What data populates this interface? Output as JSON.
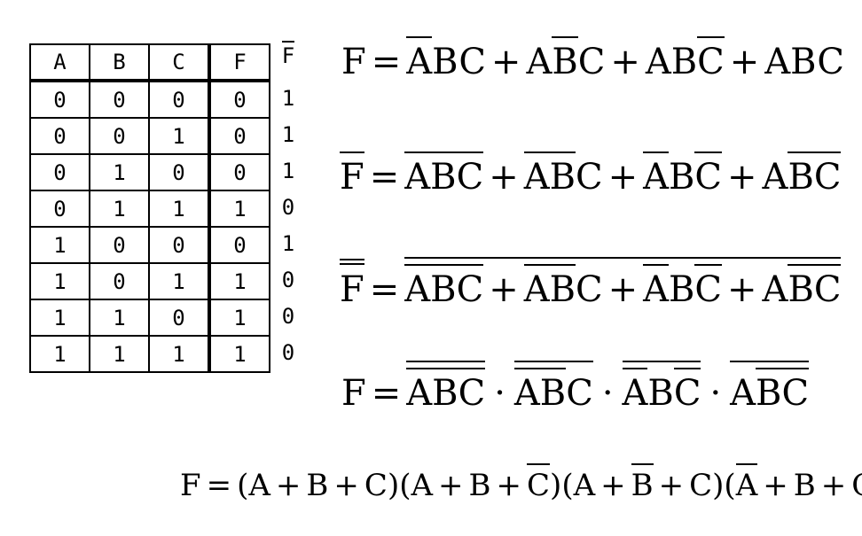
{
  "table": {
    "headers": [
      "A",
      "B",
      "C",
      "F"
    ],
    "rows": [
      [
        "0",
        "0",
        "0",
        "0"
      ],
      [
        "0",
        "0",
        "1",
        "0"
      ],
      [
        "0",
        "1",
        "0",
        "0"
      ],
      [
        "0",
        "1",
        "1",
        "1"
      ],
      [
        "1",
        "0",
        "0",
        "0"
      ],
      [
        "1",
        "0",
        "1",
        "1"
      ],
      [
        "1",
        "1",
        "0",
        "1"
      ],
      [
        "1",
        "1",
        "1",
        "1"
      ]
    ]
  },
  "fbar": {
    "header": "F",
    "values": [
      "1",
      "1",
      "1",
      "0",
      "1",
      "0",
      "0",
      "0"
    ]
  },
  "glyphs": {
    "F": "F",
    "A": "A",
    "B": "B",
    "C": "C",
    "eq": "=",
    "plus": "+",
    "cdot": "·",
    "lp": "(",
    "rp": ")"
  }
}
